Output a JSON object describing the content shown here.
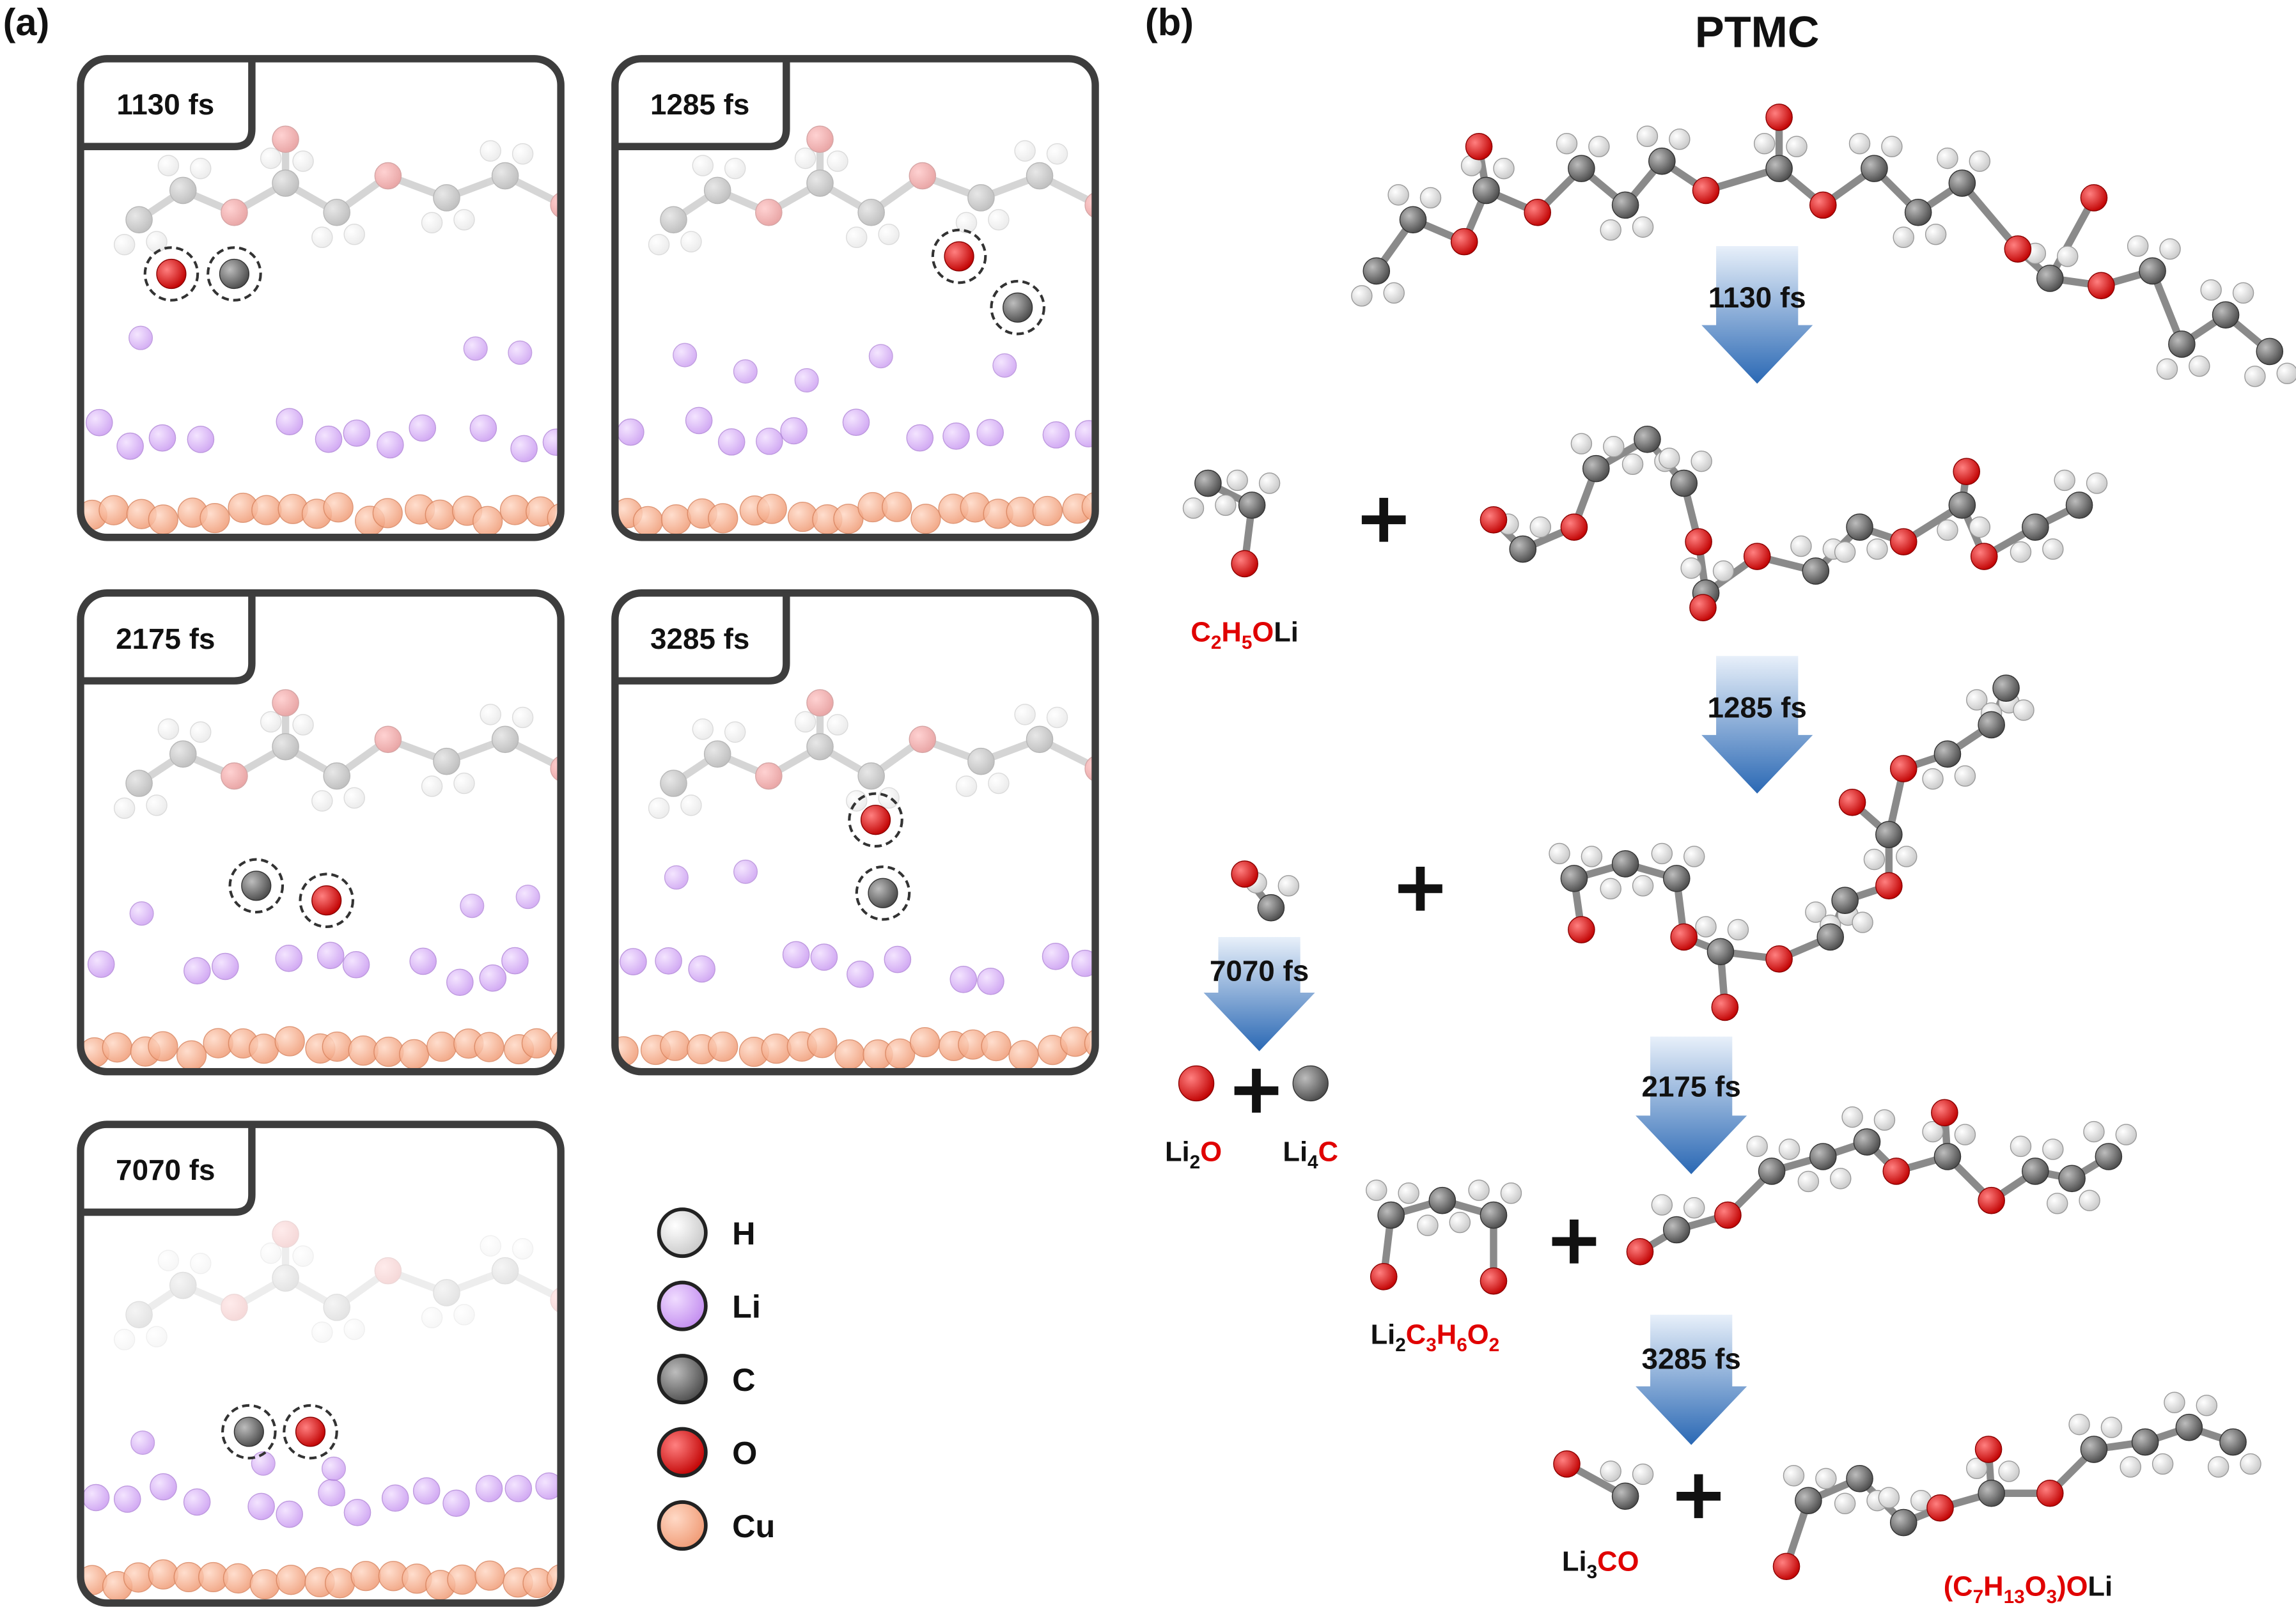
{
  "panel_a": {
    "label": "(a)",
    "snapshots": [
      "1130 fs",
      "1285 fs",
      "2175 fs",
      "3285 fs",
      "7070 fs"
    ],
    "legend": [
      "H",
      "Li",
      "C",
      "O",
      "Cu"
    ]
  },
  "panel_b": {
    "label": "(b)",
    "title": "PTMC",
    "arrows": [
      "1130 fs",
      "1285 fs",
      "7070 fs",
      "2175 fs",
      "3285 fs"
    ],
    "products": [
      [
        {
          "t": "C",
          "red": true
        },
        {
          "t": "2",
          "red": true,
          "sub": true
        },
        {
          "t": "H",
          "red": true
        },
        {
          "t": "5",
          "red": true,
          "sub": true
        },
        {
          "t": "O",
          "red": true
        },
        {
          "t": "Li"
        }
      ],
      [
        {
          "t": "Li"
        },
        {
          "t": "2",
          "sub": true
        },
        {
          "t": "O",
          "red": true
        }
      ],
      [
        {
          "t": "Li"
        },
        {
          "t": "4",
          "sub": true
        },
        {
          "t": "C",
          "red": true
        }
      ],
      [
        {
          "t": "Li"
        },
        {
          "t": "2",
          "sub": true
        },
        {
          "t": "C",
          "red": true
        },
        {
          "t": "3",
          "red": true,
          "sub": true
        },
        {
          "t": "H",
          "red": true
        },
        {
          "t": "6",
          "red": true,
          "sub": true
        },
        {
          "t": "O",
          "red": true
        },
        {
          "t": "2",
          "red": true,
          "sub": true
        }
      ],
      [
        {
          "t": "Li"
        },
        {
          "t": "3",
          "sub": true
        },
        {
          "t": "CO",
          "red": true
        }
      ],
      [
        {
          "t": "(C",
          "red": true
        },
        {
          "t": "7",
          "red": true,
          "sub": true
        },
        {
          "t": "H",
          "red": true
        },
        {
          "t": "13",
          "red": true,
          "sub": true
        },
        {
          "t": "O",
          "red": true
        },
        {
          "t": "3",
          "red": true,
          "sub": true
        },
        {
          "t": ")O",
          "red": true
        },
        {
          "t": "Li"
        }
      ]
    ]
  }
}
